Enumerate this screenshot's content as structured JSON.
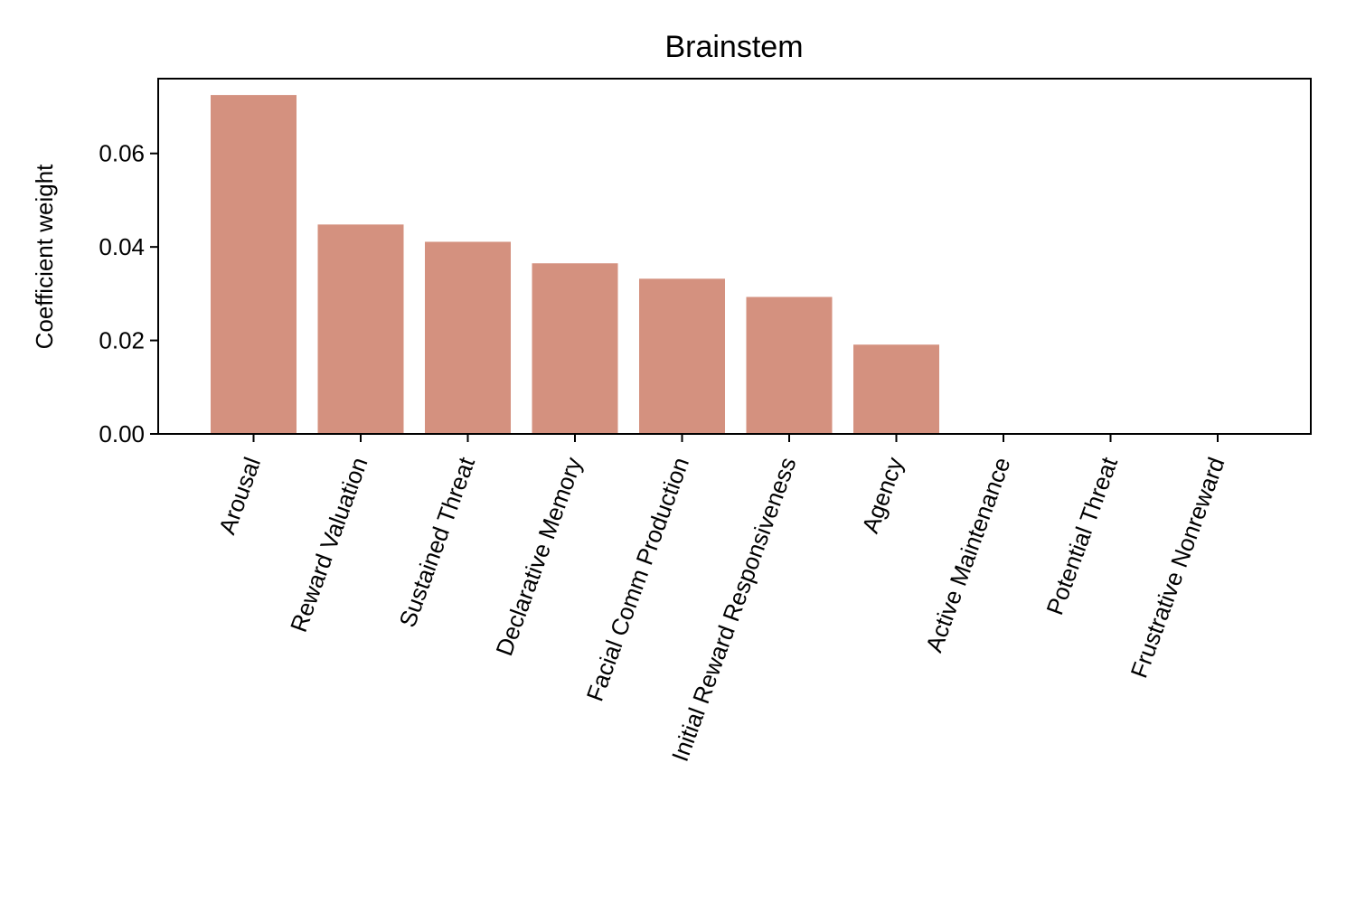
{
  "chart_data": {
    "type": "bar",
    "title": "Brainstem",
    "xlabel": "",
    "ylabel": "Coefficient weight",
    "categories": [
      "Arousal",
      "Reward Valuation",
      "Sustained Threat",
      "Declarative Memory",
      "Facial Comm Production",
      "Initial Reward Responsiveness",
      "Agency",
      "Active Maintenance",
      "Potential Threat",
      "Frustrative Nonreward"
    ],
    "values": [
      0.0725,
      0.0448,
      0.0411,
      0.0365,
      0.0332,
      0.0293,
      0.0191,
      0.0,
      0.0,
      0.0
    ],
    "ylim": [
      0,
      0.076
    ],
    "yticks": [
      0.0,
      0.02,
      0.04,
      0.06
    ],
    "ytick_labels": [
      "0.00",
      "0.02",
      "0.04",
      "0.06"
    ],
    "bar_color": "#d4917f",
    "grid": false,
    "legend": "none"
  }
}
